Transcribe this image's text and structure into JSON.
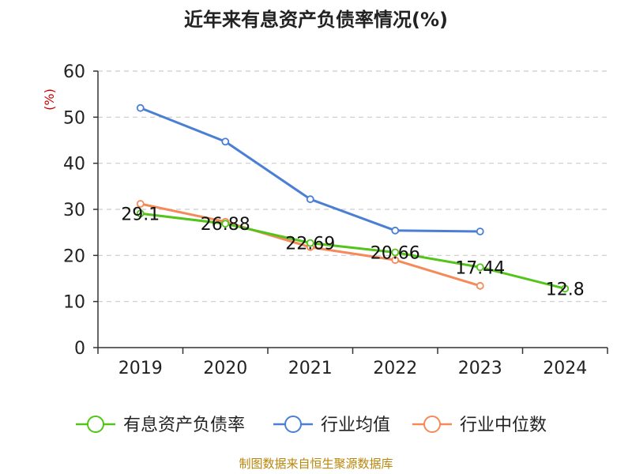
{
  "colors": {
    "series": [
      "#52c41a",
      "#4a7fd4",
      "#f5895a"
    ],
    "axis": "#333333",
    "grid": "#cccccc",
    "unit": "#cc0000",
    "source": "#b8860b",
    "text": "#222222"
  },
  "chart_data": {
    "type": "line",
    "title": "近年来有息资产负债率情况(%)",
    "unit_label": "(%)",
    "categories": [
      "2019",
      "2020",
      "2021",
      "2022",
      "2023",
      "2024"
    ],
    "ylim": [
      0,
      60
    ],
    "yticks": [
      0,
      10,
      20,
      30,
      40,
      50,
      60
    ],
    "grid": true,
    "legend_position": "bottom",
    "series": [
      {
        "name": "有息资产负债率",
        "values": [
          29.1,
          26.88,
          22.69,
          20.66,
          17.44,
          12.8
        ],
        "labels": [
          "29.1",
          "26.88",
          "22.69",
          "20.66",
          "17.44",
          "12.8"
        ]
      },
      {
        "name": "行业均值",
        "values": [
          52.0,
          44.7,
          32.2,
          25.4,
          25.2,
          null
        ]
      },
      {
        "name": "行业中位数",
        "values": [
          31.2,
          27.3,
          21.8,
          19.0,
          13.4,
          null
        ]
      }
    ],
    "source": "制图数据来自恒生聚源数据库"
  }
}
